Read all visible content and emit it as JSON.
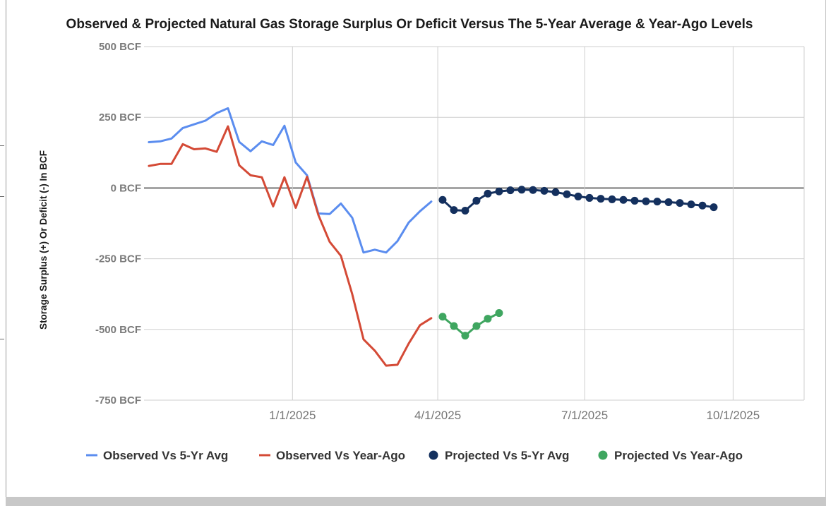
{
  "chart_data": {
    "type": "line",
    "title": "Observed & Projected Natural Gas Storage Surplus Or Deficit Versus The 5-Year Average & Year-Ago Levels",
    "ylabel": "Storage Surplus (+) Or Deficit (-) In BCF",
    "xlabel": "",
    "ylim": [
      -750,
      500
    ],
    "yticks": [
      {
        "value": 500,
        "label": "500 BCF"
      },
      {
        "value": 250,
        "label": "250 BCF"
      },
      {
        "value": 0,
        "label": "0 BCF"
      },
      {
        "value": -250,
        "label": "-250 BCF"
      },
      {
        "value": -500,
        "label": "-500 BCF"
      },
      {
        "value": -750,
        "label": "-750 BCF"
      }
    ],
    "xlim": [
      "2024-10-01",
      "2025-11-14"
    ],
    "xticks": [
      {
        "date": "2025-01-01",
        "label": "1/1/2025"
      },
      {
        "date": "2025-04-01",
        "label": "4/1/2025"
      },
      {
        "date": "2025-07-01",
        "label": "7/1/2025"
      },
      {
        "date": "2025-10-01",
        "label": "10/1/2025"
      }
    ],
    "grid": true,
    "legend": "bottom",
    "series": [
      {
        "name": "Observed Vs 5-Yr Avg",
        "style": "line",
        "color": "#5b8def",
        "points": [
          [
            "2024-10-04",
            162
          ],
          [
            "2024-10-11",
            165
          ],
          [
            "2024-10-18",
            175
          ],
          [
            "2024-10-25",
            212
          ],
          [
            "2024-11-01",
            225
          ],
          [
            "2024-11-08",
            238
          ],
          [
            "2024-11-15",
            265
          ],
          [
            "2024-11-22",
            282
          ],
          [
            "2024-11-29",
            163
          ],
          [
            "2024-12-06",
            130
          ],
          [
            "2024-12-13",
            165
          ],
          [
            "2024-12-20",
            152
          ],
          [
            "2024-12-27",
            220
          ],
          [
            "2025-01-03",
            90
          ],
          [
            "2025-01-10",
            45
          ],
          [
            "2025-01-17",
            -90
          ],
          [
            "2025-01-24",
            -92
          ],
          [
            "2025-01-31",
            -55
          ],
          [
            "2025-02-07",
            -105
          ],
          [
            "2025-02-14",
            -228
          ],
          [
            "2025-02-21",
            -218
          ],
          [
            "2025-02-28",
            -228
          ],
          [
            "2025-03-07",
            -188
          ],
          [
            "2025-03-14",
            -122
          ],
          [
            "2025-03-21",
            -82
          ],
          [
            "2025-03-28",
            -48
          ]
        ]
      },
      {
        "name": "Observed Vs Year-Ago",
        "style": "line",
        "color": "#d44a36",
        "points": [
          [
            "2024-10-04",
            78
          ],
          [
            "2024-10-11",
            85
          ],
          [
            "2024-10-18",
            85
          ],
          [
            "2024-10-25",
            155
          ],
          [
            "2024-11-01",
            137
          ],
          [
            "2024-11-08",
            140
          ],
          [
            "2024-11-15",
            128
          ],
          [
            "2024-11-22",
            218
          ],
          [
            "2024-11-29",
            80
          ],
          [
            "2024-12-06",
            45
          ],
          [
            "2024-12-13",
            38
          ],
          [
            "2024-12-20",
            -65
          ],
          [
            "2024-12-27",
            38
          ],
          [
            "2025-01-03",
            -70
          ],
          [
            "2025-01-10",
            40
          ],
          [
            "2025-01-17",
            -95
          ],
          [
            "2025-01-24",
            -190
          ],
          [
            "2025-01-31",
            -240
          ],
          [
            "2025-02-07",
            -375
          ],
          [
            "2025-02-14",
            -535
          ],
          [
            "2025-02-21",
            -575
          ],
          [
            "2025-02-28",
            -628
          ],
          [
            "2025-03-07",
            -625
          ],
          [
            "2025-03-14",
            -550
          ],
          [
            "2025-03-21",
            -485
          ],
          [
            "2025-03-28",
            -460
          ]
        ]
      },
      {
        "name": "Projected Vs 5-Yr Avg",
        "style": "line-markers",
        "color": "#14305e",
        "points": [
          [
            "2025-04-04",
            -42
          ],
          [
            "2025-04-11",
            -78
          ],
          [
            "2025-04-18",
            -80
          ],
          [
            "2025-04-25",
            -45
          ],
          [
            "2025-05-02",
            -20
          ],
          [
            "2025-05-09",
            -12
          ],
          [
            "2025-05-16",
            -8
          ],
          [
            "2025-05-23",
            -6
          ],
          [
            "2025-05-30",
            -7
          ],
          [
            "2025-06-06",
            -10
          ],
          [
            "2025-06-13",
            -15
          ],
          [
            "2025-06-20",
            -22
          ],
          [
            "2025-06-27",
            -30
          ],
          [
            "2025-07-04",
            -35
          ],
          [
            "2025-07-11",
            -38
          ],
          [
            "2025-07-18",
            -40
          ],
          [
            "2025-07-25",
            -42
          ],
          [
            "2025-08-01",
            -45
          ],
          [
            "2025-08-08",
            -47
          ],
          [
            "2025-08-15",
            -48
          ],
          [
            "2025-08-22",
            -50
          ],
          [
            "2025-08-29",
            -53
          ],
          [
            "2025-09-05",
            -58
          ],
          [
            "2025-09-12",
            -62
          ],
          [
            "2025-09-19",
            -68
          ]
        ]
      },
      {
        "name": "Projected Vs Year-Ago",
        "style": "line-markers",
        "color": "#3fa660",
        "points": [
          [
            "2025-04-04",
            -455
          ],
          [
            "2025-04-11",
            -488
          ],
          [
            "2025-04-18",
            -522
          ],
          [
            "2025-04-25",
            -488
          ],
          [
            "2025-05-02",
            -462
          ],
          [
            "2025-05-09",
            -442
          ]
        ]
      }
    ]
  }
}
